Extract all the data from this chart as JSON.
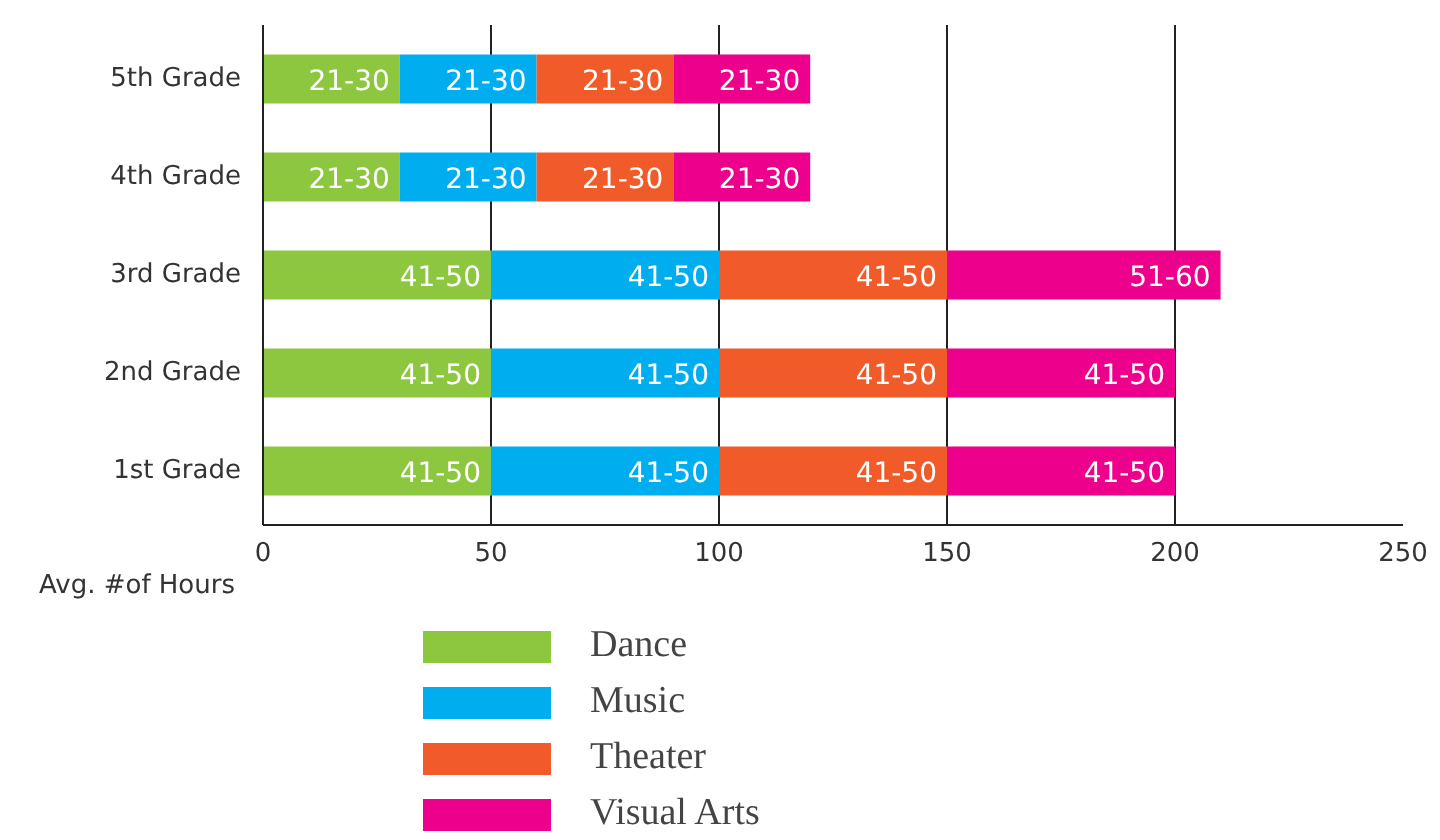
{
  "chart_data": {
    "type": "bar",
    "orientation": "horizontal",
    "stacked": true,
    "xlabel": "Avg. #of Hours",
    "categories": [
      "5th Grade",
      "4th Grade",
      "3rd Grade",
      "2nd Grade",
      "1st Grade"
    ],
    "series": [
      {
        "name": "Dance",
        "color": "#8dc63f",
        "values": [
          30,
          30,
          50,
          50,
          50
        ],
        "value_labels": [
          "21-30",
          "21-30",
          "41-50",
          "41-50",
          "41-50"
        ]
      },
      {
        "name": "Music",
        "color": "#00aeef",
        "values": [
          30,
          30,
          50,
          50,
          50
        ],
        "value_labels": [
          "21-30",
          "21-30",
          "41-50",
          "41-50",
          "41-50"
        ]
      },
      {
        "name": "Theater",
        "color": "#f15a29",
        "values": [
          30,
          30,
          50,
          50,
          50
        ],
        "value_labels": [
          "21-30",
          "21-30",
          "41-50",
          "41-50",
          "41-50"
        ]
      },
      {
        "name": "Visual Arts",
        "color": "#ec008c",
        "values": [
          30,
          30,
          60,
          50,
          50
        ],
        "value_labels": [
          "21-30",
          "21-30",
          "51-60",
          "41-50",
          "41-50"
        ]
      }
    ],
    "xlim": [
      0,
      250
    ],
    "xticks": [
      0,
      50,
      100,
      150,
      200,
      250
    ],
    "grid": "x",
    "legend": "bottom left"
  }
}
